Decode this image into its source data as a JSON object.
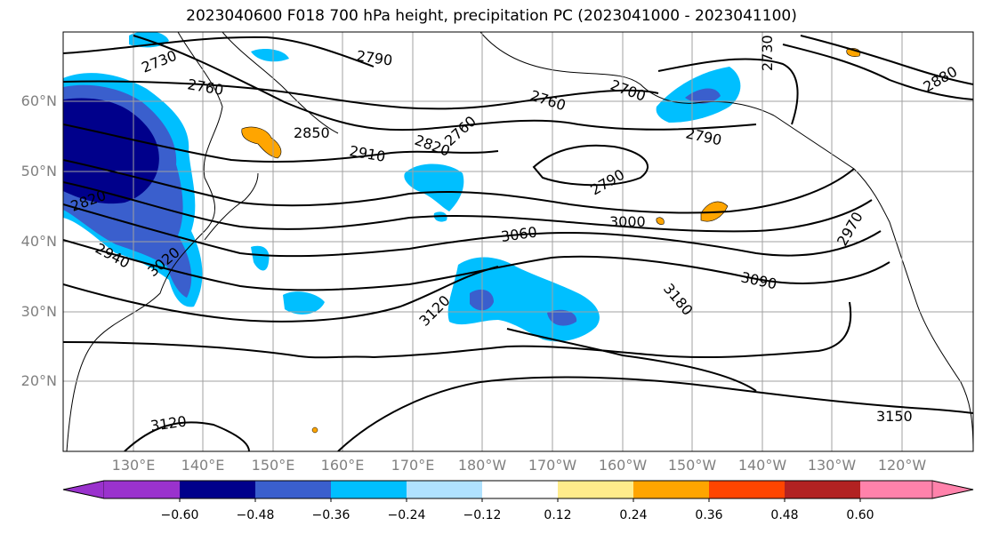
{
  "title": "2023040600 F018 700 hPa height, precipitation PC (2023041000 - 2023041100)",
  "lat_labels": [
    "60°N",
    "50°N",
    "40°N",
    "30°N",
    "20°N"
  ],
  "lon_labels": [
    "130°E",
    "140°E",
    "150°E",
    "160°E",
    "170°E",
    "180°W",
    "170°W",
    "160°W",
    "150°W",
    "140°W",
    "130°W",
    "120°W"
  ],
  "contour_labels": [
    "2730",
    "2760",
    "2790",
    "2850",
    "2910",
    "2820",
    "2760",
    "2700",
    "2760",
    "2790",
    "2790",
    "3000",
    "3060",
    "3120",
    "3180",
    "3090",
    "2970",
    "2820",
    "2940",
    "3020",
    "3120",
    "3150",
    "2730",
    "2880"
  ],
  "colorbar": {
    "ticks": [
      "−0.60",
      "−0.48",
      "−0.36",
      "−0.24",
      "−0.12",
      "0.12",
      "0.24",
      "0.36",
      "0.48",
      "0.60"
    ],
    "colors": [
      "#9a32cd",
      "#00008b",
      "#3a5fcd",
      "#00bfff",
      "#b0e2ff",
      "#ffffff",
      "#ffec8b",
      "#ffa500",
      "#ff4500",
      "#b22222",
      "#ff82ab"
    ]
  },
  "colors": {
    "grid": "#a0a0a0",
    "contour": "#000000",
    "tick_label": "#808080"
  }
}
